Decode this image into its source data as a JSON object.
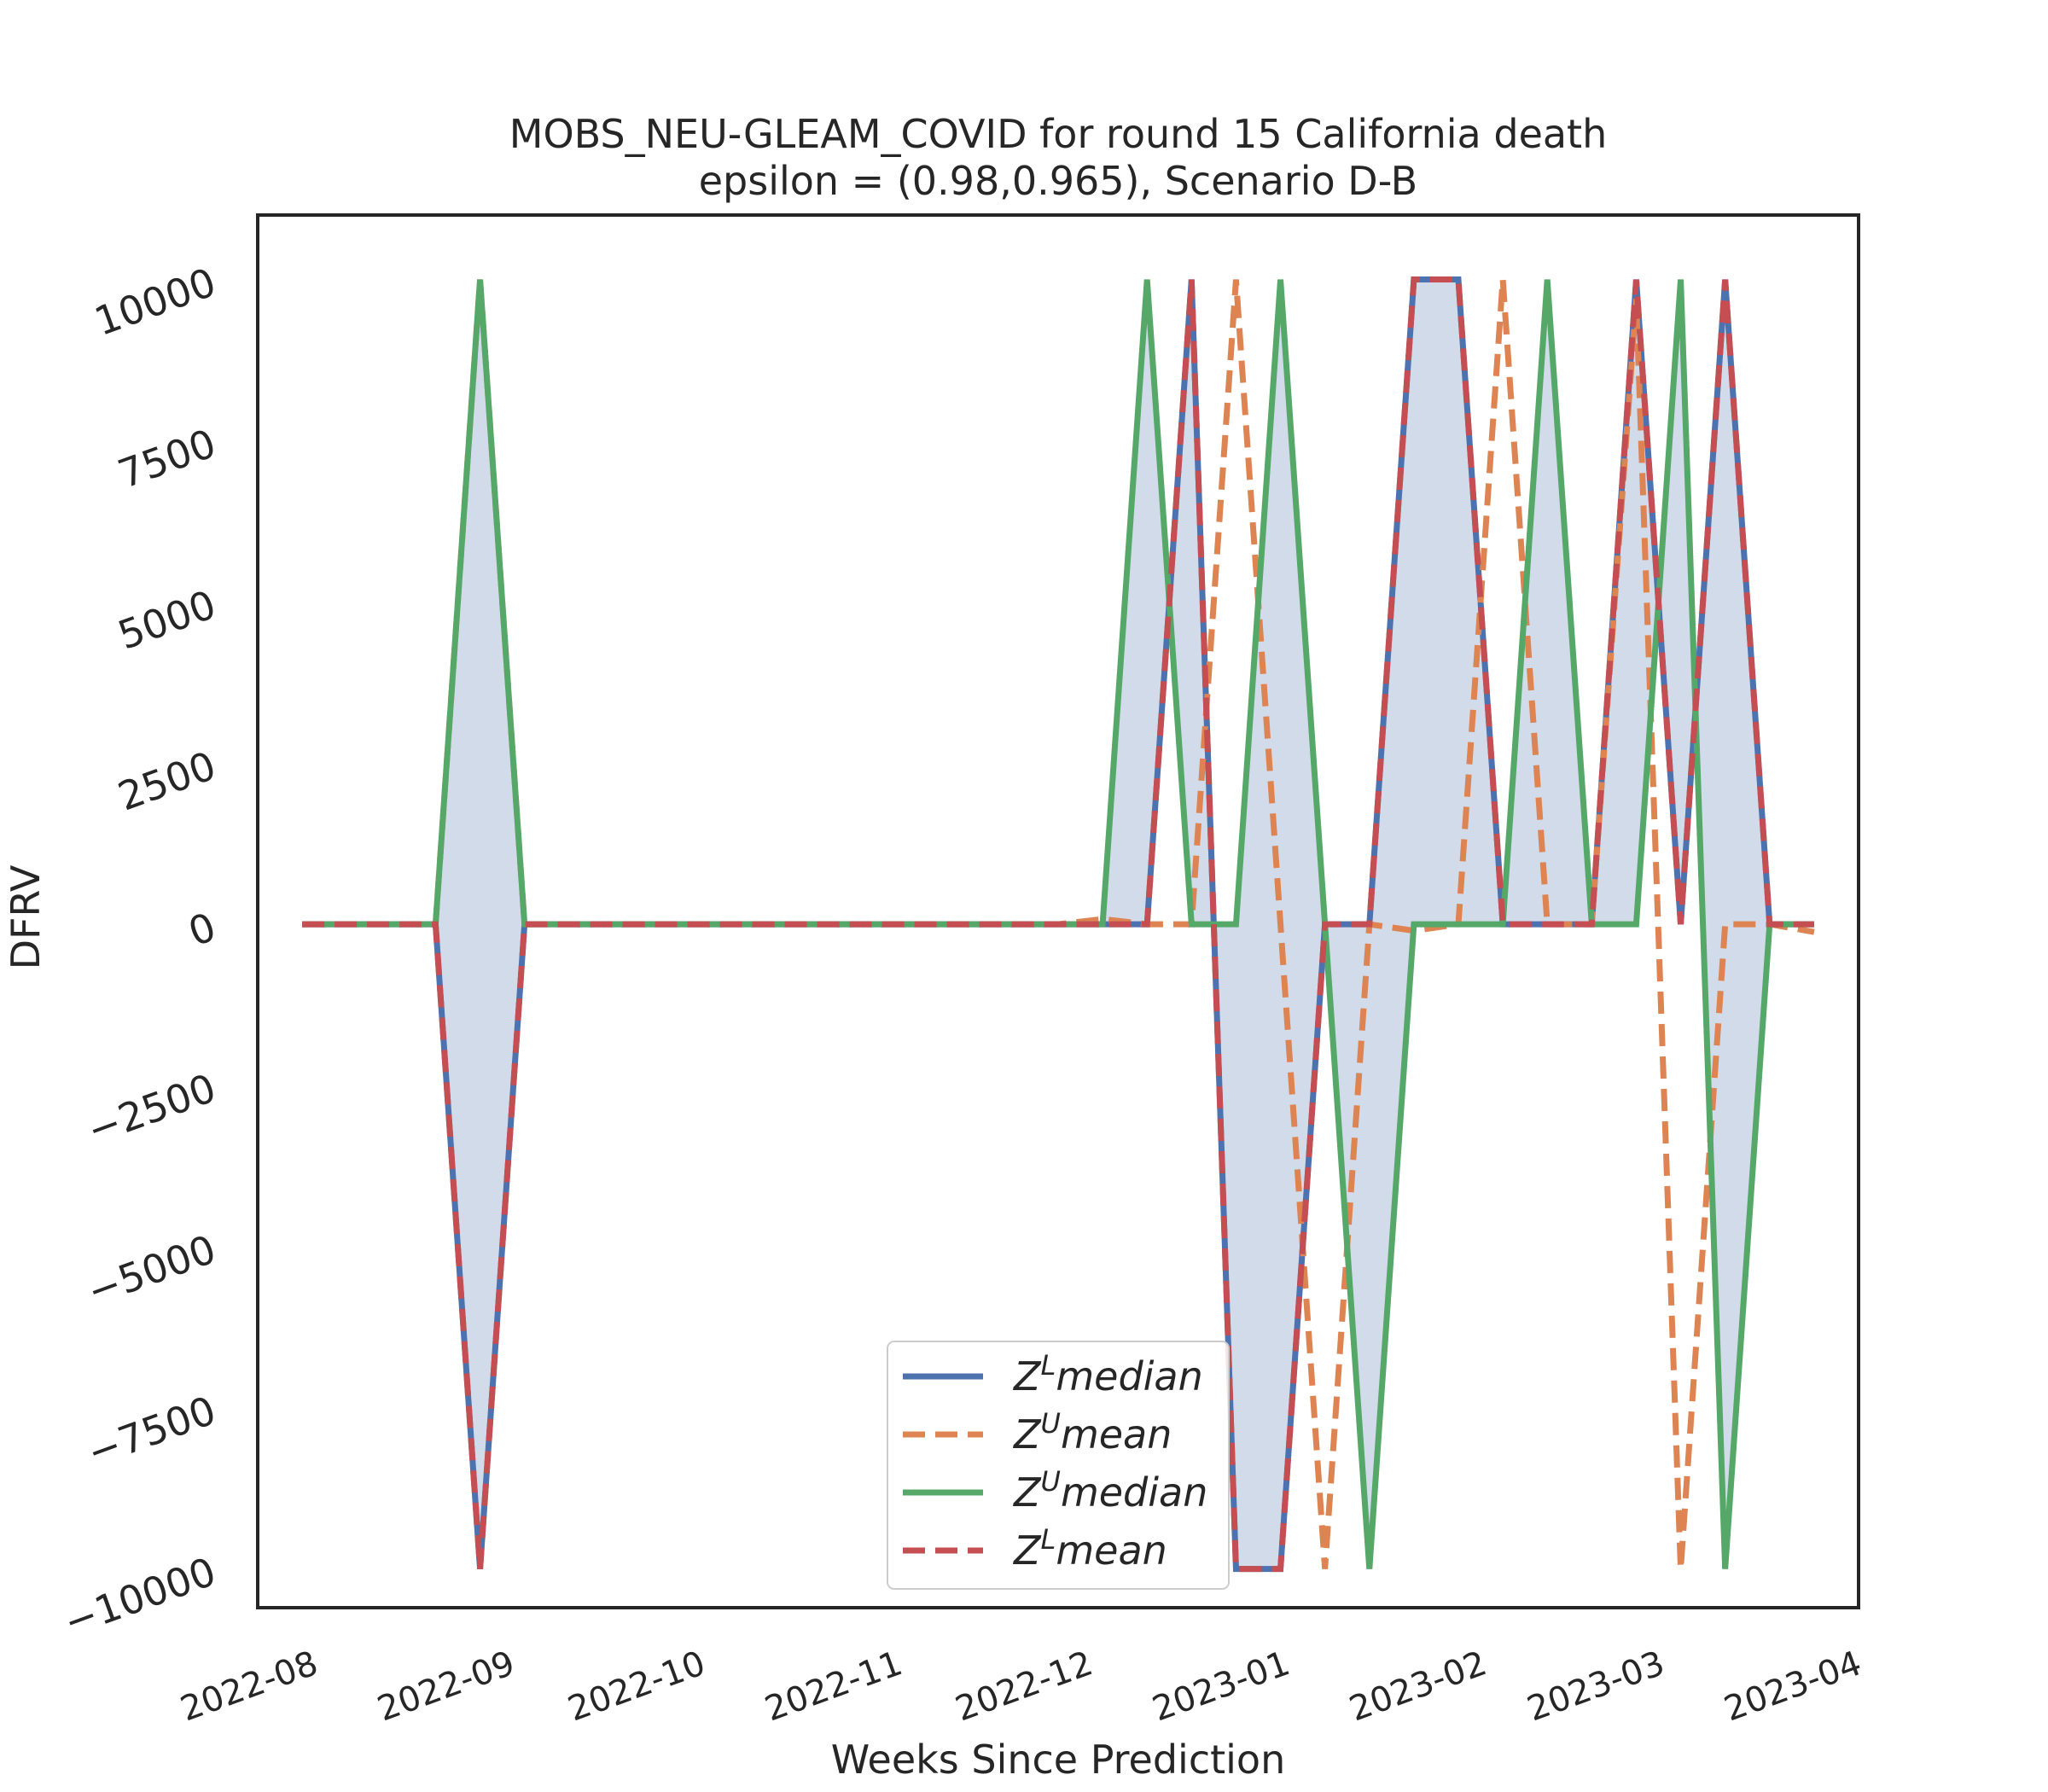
{
  "chart_data": {
    "type": "line",
    "title": "MOBS_NEU-GLEAM_COVID for round 15 California  death",
    "subtitle": "epsilon = (0.98,0.965), Scenario D-B",
    "xlabel": "Weeks Since Prediction",
    "ylabel": "DFRV",
    "xlim": [
      "2022-07-23",
      "2023-04-01"
    ],
    "ylim": [
      -10600,
      11000
    ],
    "yticks": [
      -10000,
      -7500,
      -5000,
      -2500,
      0,
      2500,
      5000,
      7500,
      10000
    ],
    "ytick_labels": [
      "−10000",
      "−7500",
      "−5000",
      "−2500",
      "0",
      "2500",
      "5000",
      "7500",
      "10000"
    ],
    "xticks": [
      "2022-08-01",
      "2022-09-01",
      "2022-10-01",
      "2022-11-01",
      "2022-12-01",
      "2023-01-01",
      "2023-02-01",
      "2023-03-01",
      "2023-04-01"
    ],
    "xtick_labels": [
      "2022-08",
      "2022-09",
      "2022-10",
      "2022-11",
      "2022-12",
      "2023-01",
      "2023-02",
      "2023-03",
      "2023-04"
    ],
    "grid": false,
    "legend_position": "lower-center",
    "x": [
      "2022-07-30",
      "2022-08-06",
      "2022-08-13",
      "2022-08-20",
      "2022-08-27",
      "2022-09-03",
      "2022-09-10",
      "2022-09-17",
      "2022-09-24",
      "2022-10-01",
      "2022-10-08",
      "2022-10-15",
      "2022-10-22",
      "2022-10-29",
      "2022-11-05",
      "2022-11-12",
      "2022-11-19",
      "2022-11-26",
      "2022-12-03",
      "2022-12-10",
      "2022-12-17",
      "2022-12-24",
      "2022-12-31",
      "2023-01-07",
      "2023-01-14",
      "2023-01-21",
      "2023-01-28",
      "2023-02-04",
      "2023-02-11",
      "2023-02-18",
      "2023-02-25",
      "2023-03-04",
      "2023-03-11",
      "2023-03-18",
      "2023-03-25"
    ],
    "series": [
      {
        "name": "Z^L median",
        "color": "#4c72b0",
        "dash": "solid",
        "values": [
          0,
          0,
          0,
          0,
          -10000,
          0,
          0,
          0,
          0,
          0,
          0,
          0,
          0,
          0,
          0,
          0,
          0,
          0,
          0,
          0,
          10000,
          -10000,
          -10000,
          0,
          0,
          10000,
          10000,
          0,
          0,
          0,
          10000,
          0,
          10000,
          0,
          0
        ]
      },
      {
        "name": "Z^U mean",
        "color": "#dd8452",
        "dash": "dashed",
        "values": [
          0,
          0,
          0,
          0,
          10000,
          0,
          0,
          0,
          0,
          0,
          0,
          0,
          0,
          0,
          0,
          0,
          0,
          0,
          80,
          0,
          0,
          10000,
          0,
          -10000,
          0,
          -100,
          0,
          10000,
          0,
          0,
          9700,
          -10000,
          0,
          0,
          -120
        ]
      },
      {
        "name": "Z^U median",
        "color": "#55a868",
        "dash": "solid",
        "values": [
          0,
          0,
          0,
          0,
          10000,
          0,
          0,
          0,
          0,
          0,
          0,
          0,
          0,
          0,
          0,
          0,
          0,
          0,
          0,
          10000,
          0,
          0,
          10000,
          0,
          -10000,
          0,
          0,
          0,
          10000,
          0,
          0,
          10000,
          -10000,
          0,
          0
        ]
      },
      {
        "name": "Z^L mean",
        "color": "#c44e52",
        "dash": "dashed",
        "values": [
          0,
          0,
          0,
          0,
          -10000,
          0,
          0,
          0,
          0,
          0,
          0,
          0,
          0,
          0,
          0,
          0,
          0,
          0,
          0,
          0,
          10000,
          -10000,
          -10000,
          0,
          0,
          10000,
          10000,
          0,
          0,
          0,
          10000,
          0,
          10000,
          0,
          0
        ]
      }
    ],
    "fill_color": "#d2dbea",
    "legend": [
      {
        "base": "Z",
        "sup": "L",
        "rest": "median",
        "color": "#4c72b0",
        "dash": "solid"
      },
      {
        "base": "Z",
        "sup": "U",
        "rest": "mean",
        "color": "#dd8452",
        "dash": "dashed"
      },
      {
        "base": "Z",
        "sup": "U",
        "rest": "median",
        "color": "#55a868",
        "dash": "solid"
      },
      {
        "base": "Z",
        "sup": "L",
        "rest": "mean",
        "color": "#c44e52",
        "dash": "dashed"
      }
    ]
  }
}
